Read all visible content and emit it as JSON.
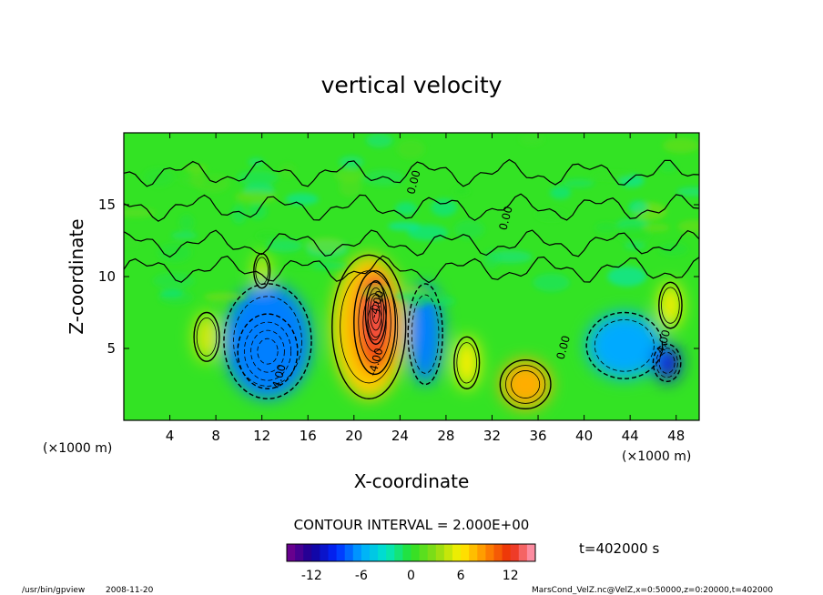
{
  "chart_data": {
    "type": "heatmap",
    "title": "vertical velocity",
    "xlabel": "X-coordinate",
    "ylabel": "Z-coordinate",
    "x_unit_left": "(×1000 m)",
    "x_unit_right": "(×1000 m)",
    "xlim": [
      0,
      50
    ],
    "ylim": [
      0,
      20
    ],
    "x_ticks": [
      4,
      8,
      12,
      16,
      20,
      24,
      28,
      32,
      36,
      40,
      44,
      48
    ],
    "y_ticks": [
      5,
      10,
      15
    ],
    "contour_interval_text": "CONTOUR INTERVAL = 2.000E+00",
    "contour_labels": [
      {
        "text": "4.00",
        "x": 13.8,
        "y": 3.0
      },
      {
        "text": "-4.00",
        "x": 22.3,
        "y": 8.0
      },
      {
        "text": "-4.00",
        "x": 22.2,
        "y": 4.0
      },
      {
        "text": "0.00",
        "x": 25.5,
        "y": 16.5
      },
      {
        "text": "0.00",
        "x": 33.5,
        "y": 14.0
      },
      {
        "text": "0.00",
        "x": 38.5,
        "y": 5.0
      },
      {
        "text": "4.00",
        "x": 47.2,
        "y": 5.4
      }
    ],
    "colorbar": {
      "min": -15,
      "max": 15,
      "tick_labels": [
        "-12",
        "-6",
        "0",
        "6",
        "12"
      ],
      "tick_values": [
        -12,
        -6,
        0,
        6,
        12
      ]
    },
    "blobs": [
      {
        "x": 12.5,
        "y": 4.8,
        "rx": 2.6,
        "ry": 2.6,
        "value": -12
      },
      {
        "x": 12.5,
        "y": 5.5,
        "rx": 3.8,
        "ry": 4.0,
        "value": -7
      },
      {
        "x": 26.2,
        "y": 6.0,
        "rx": 1.5,
        "ry": 3.5,
        "value": -7
      },
      {
        "x": 43.5,
        "y": 5.2,
        "rx": 3.3,
        "ry": 2.3,
        "value": -6
      },
      {
        "x": 47.2,
        "y": 4.0,
        "rx": 1.2,
        "ry": 1.3,
        "value": -10
      },
      {
        "x": 21.3,
        "y": 6.5,
        "rx": 3.2,
        "ry": 5.0,
        "value": 7
      },
      {
        "x": 21.8,
        "y": 6.8,
        "rx": 1.8,
        "ry": 3.6,
        "value": 11
      },
      {
        "x": 21.9,
        "y": 7.5,
        "rx": 0.9,
        "ry": 2.2,
        "value": 13
      },
      {
        "x": 34.9,
        "y": 2.5,
        "rx": 2.2,
        "ry": 1.7,
        "value": 8
      },
      {
        "x": 29.8,
        "y": 4.0,
        "rx": 1.1,
        "ry": 1.8,
        "value": 6
      },
      {
        "x": 7.2,
        "y": 5.8,
        "rx": 1.1,
        "ry": 1.7,
        "value": 5
      },
      {
        "x": 47.5,
        "y": 8.0,
        "rx": 1.0,
        "ry": 1.6,
        "value": 6
      },
      {
        "x": 12.0,
        "y": 10.4,
        "rx": 0.7,
        "ry": 1.2,
        "value": 5
      }
    ]
  },
  "footer": {
    "time": "t=402000 s",
    "left_path": "/usr/bin/gpview",
    "date": "2008-11-20",
    "right_info": "MarsCond_VelZ.nc@VelZ,x=0:50000,z=0:20000,t=402000"
  }
}
